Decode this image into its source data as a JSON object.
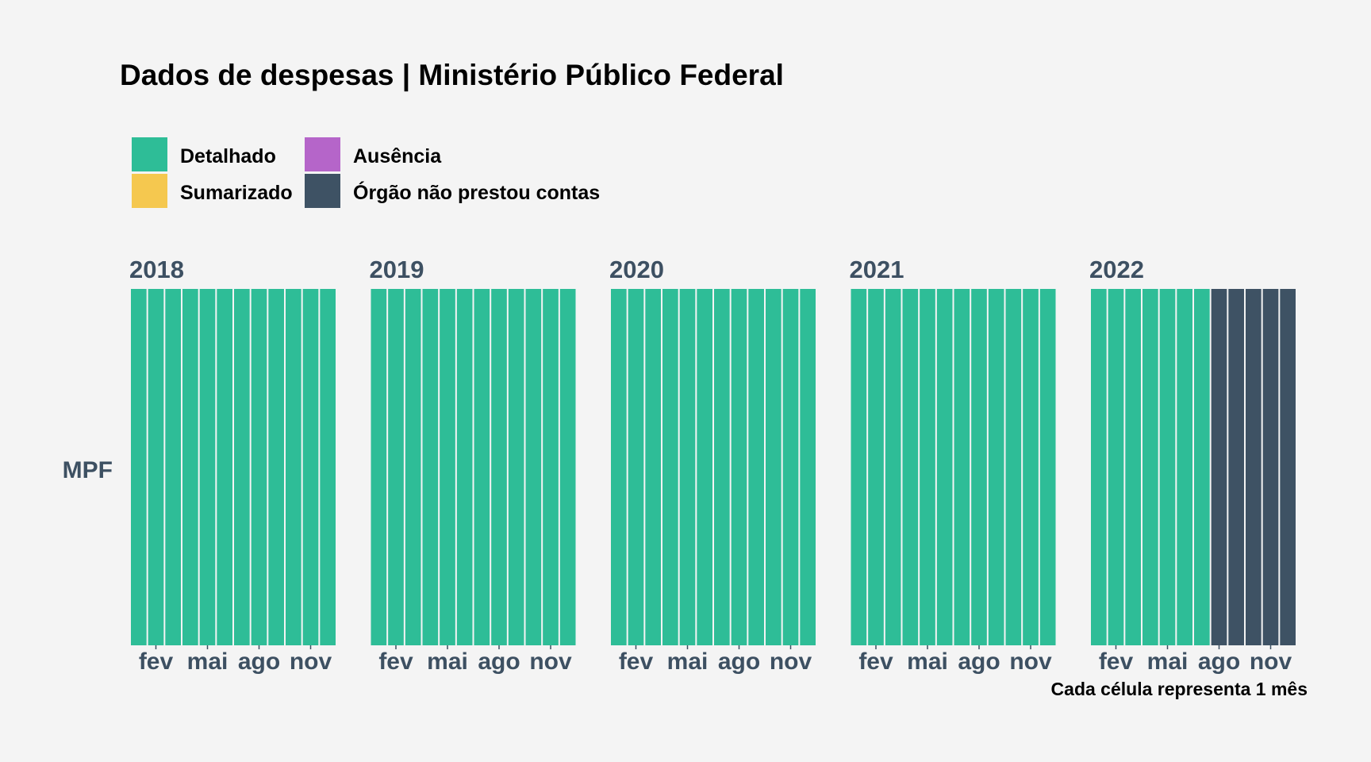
{
  "chart_data": {
    "type": "heatmap",
    "title": "Dados de despesas | Ministério Público Federal",
    "caption": "Cada célula representa 1 mês",
    "row_labels": [
      "MPF"
    ],
    "x_tick_labels": [
      "fev",
      "mai",
      "ago",
      "nov"
    ],
    "x_tick_months": [
      2,
      5,
      8,
      11
    ],
    "legend": [
      {
        "label": "Detalhado",
        "color": "#2ebd97"
      },
      {
        "label": "Sumarizado",
        "color": "#f5c84f"
      },
      {
        "label": "Ausência",
        "color": "#b565c9"
      },
      {
        "label": "Órgão não prestou contas",
        "color": "#3e5264"
      }
    ],
    "years": [
      {
        "year": "2018",
        "months": [
          "Detalhado",
          "Detalhado",
          "Detalhado",
          "Detalhado",
          "Detalhado",
          "Detalhado",
          "Detalhado",
          "Detalhado",
          "Detalhado",
          "Detalhado",
          "Detalhado",
          "Detalhado"
        ]
      },
      {
        "year": "2019",
        "months": [
          "Detalhado",
          "Detalhado",
          "Detalhado",
          "Detalhado",
          "Detalhado",
          "Detalhado",
          "Detalhado",
          "Detalhado",
          "Detalhado",
          "Detalhado",
          "Detalhado",
          "Detalhado"
        ]
      },
      {
        "year": "2020",
        "months": [
          "Detalhado",
          "Detalhado",
          "Detalhado",
          "Detalhado",
          "Detalhado",
          "Detalhado",
          "Detalhado",
          "Detalhado",
          "Detalhado",
          "Detalhado",
          "Detalhado",
          "Detalhado"
        ]
      },
      {
        "year": "2021",
        "months": [
          "Detalhado",
          "Detalhado",
          "Detalhado",
          "Detalhado",
          "Detalhado",
          "Detalhado",
          "Detalhado",
          "Detalhado",
          "Detalhado",
          "Detalhado",
          "Detalhado",
          "Detalhado"
        ]
      },
      {
        "year": "2022",
        "months": [
          "Detalhado",
          "Detalhado",
          "Detalhado",
          "Detalhado",
          "Detalhado",
          "Detalhado",
          "Detalhado",
          "Órgão não prestou contas",
          "Órgão não prestou contas",
          "Órgão não prestou contas",
          "Órgão não prestou contas",
          "Órgão não prestou contas"
        ]
      }
    ],
    "legend_position": "top-left",
    "grid": false
  }
}
